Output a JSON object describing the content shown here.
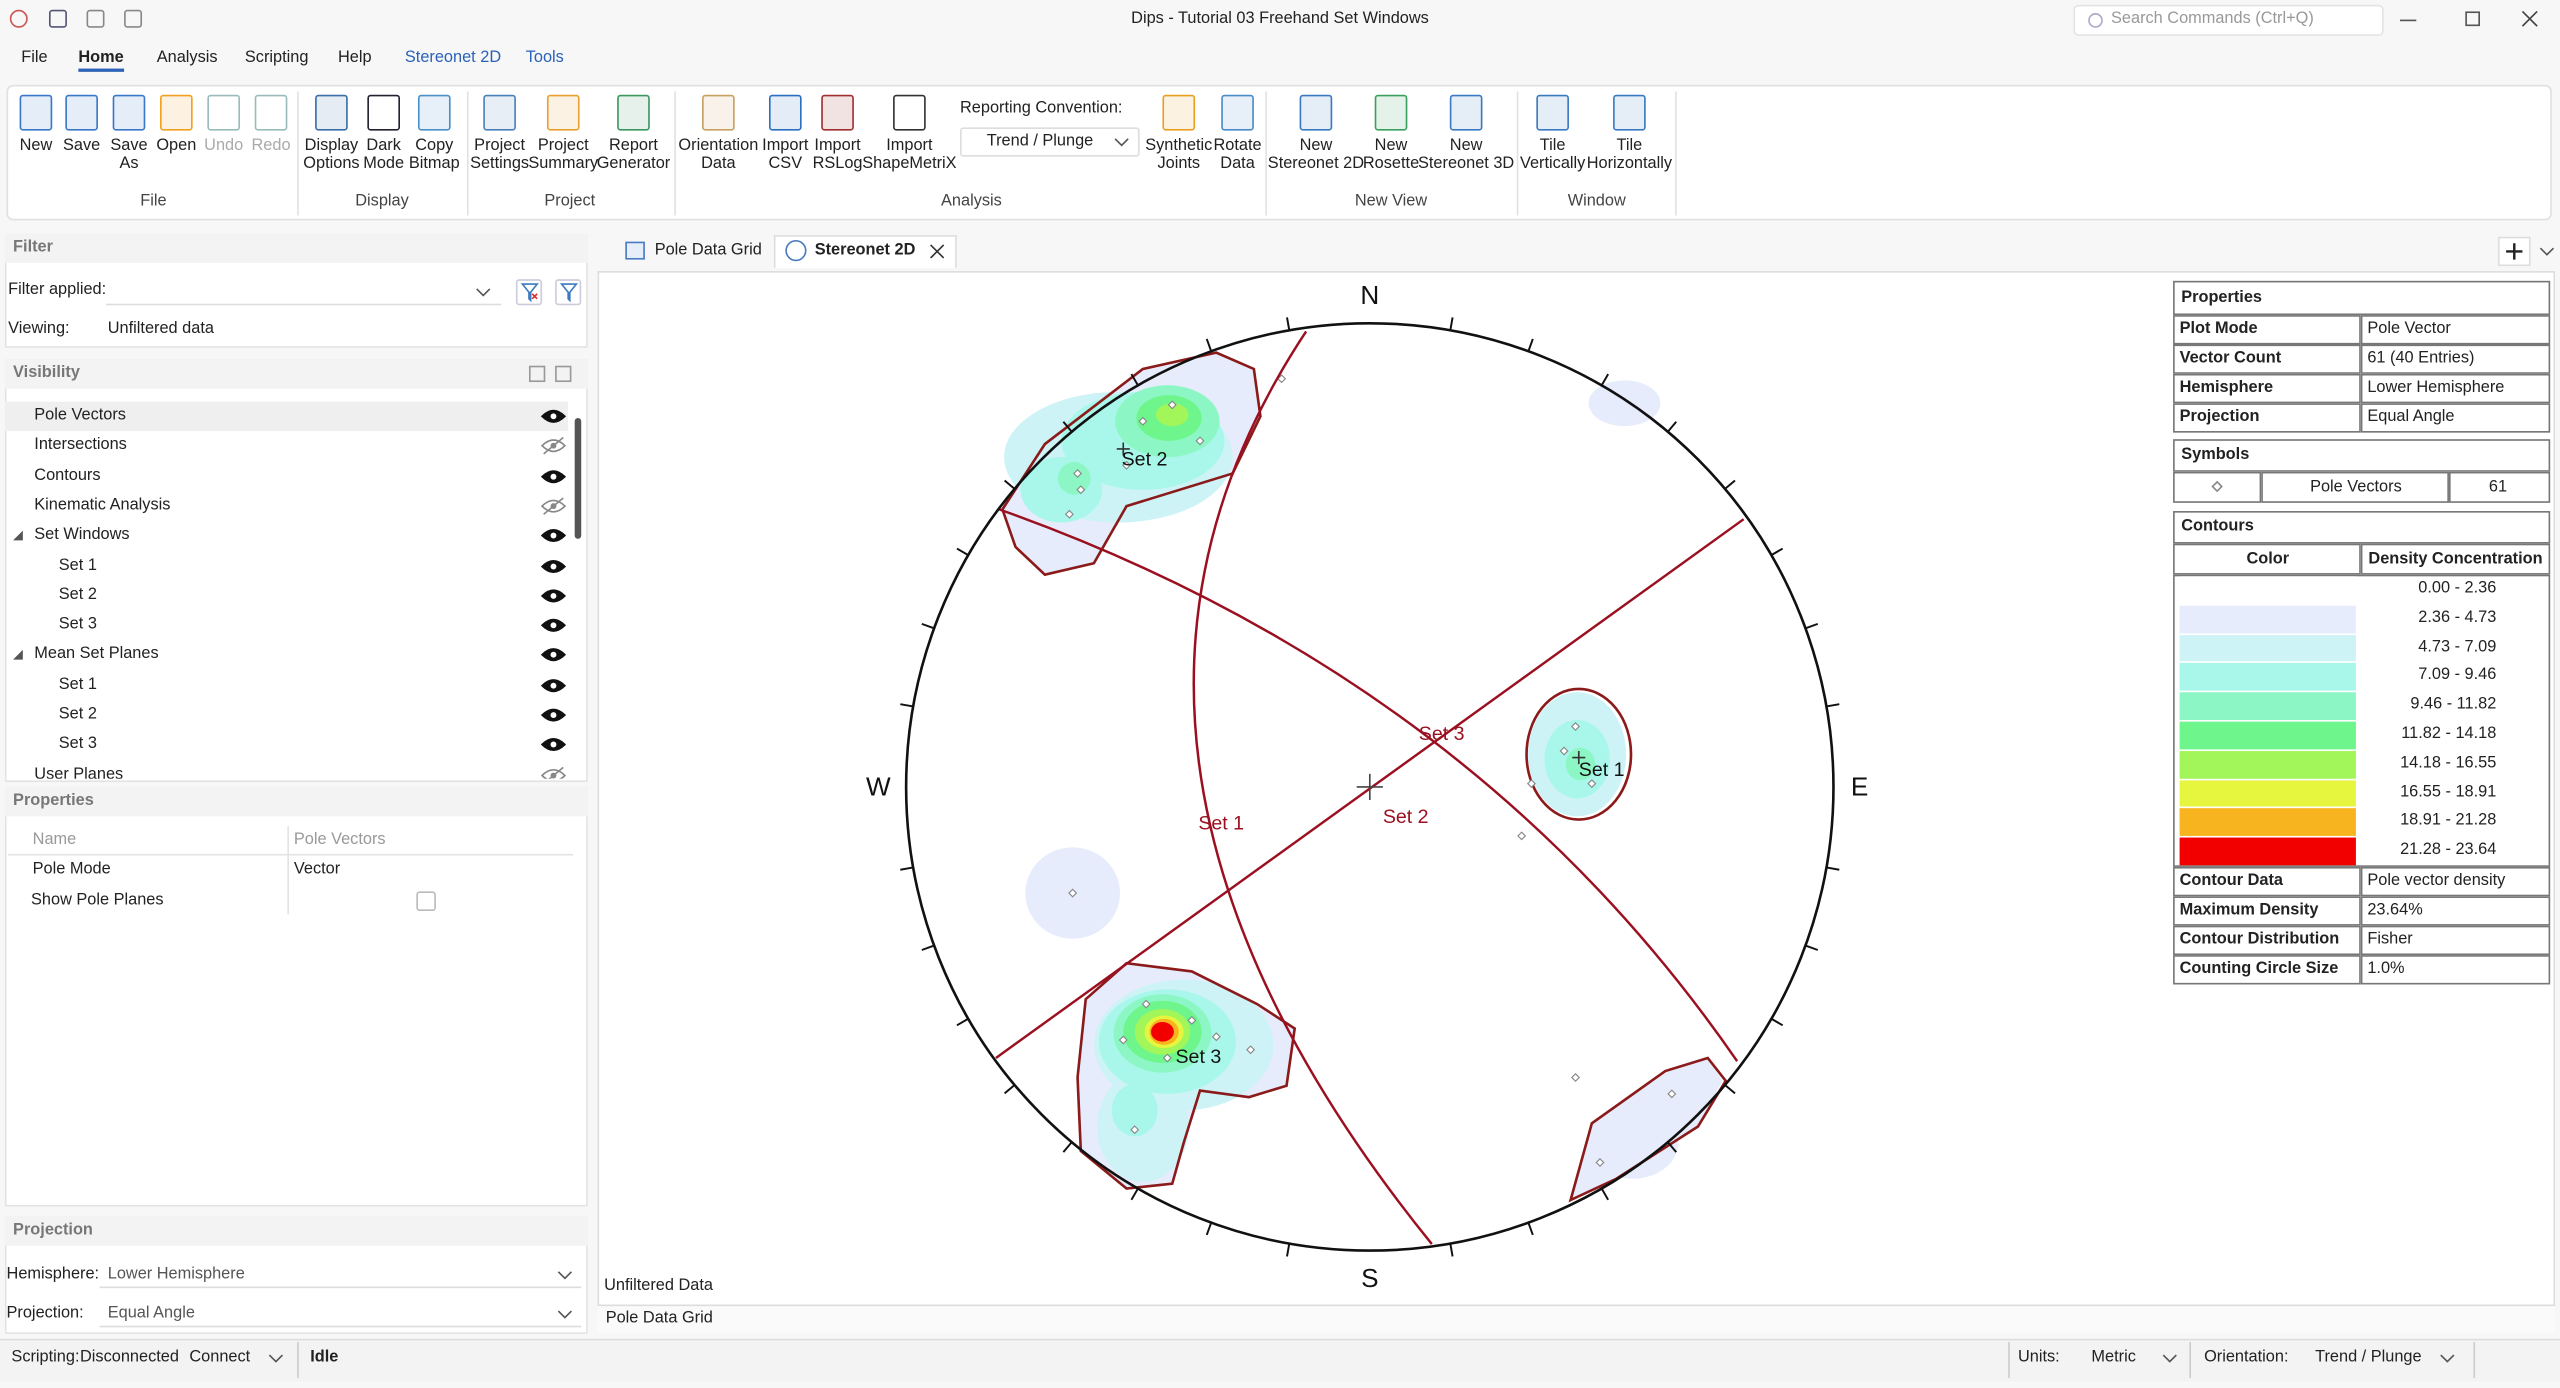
{
  "title_bar": {
    "title": "Dips - Tutorial 03 Freehand Set Windows",
    "search": "Search Commands (Ctrl+Q)"
  },
  "menu": [
    "File",
    "Home",
    "Analysis",
    "Scripting",
    "Help",
    "Stereonet 2D",
    "Tools"
  ],
  "ribbon": {
    "groups": [
      {
        "label": "File",
        "buttons": [
          [
            "New"
          ],
          [
            "Save"
          ],
          [
            "Save",
            "As"
          ],
          [
            "Open"
          ],
          [
            "Undo"
          ],
          [
            "Redo"
          ]
        ]
      },
      {
        "label": "Display",
        "buttons": [
          [
            "Display",
            "Options"
          ],
          [
            "Dark",
            "Mode"
          ],
          [
            "Copy",
            "Bitmap"
          ]
        ]
      },
      {
        "label": "Project",
        "buttons": [
          [
            "Project",
            "Settings"
          ],
          [
            "Project",
            "Summary"
          ],
          [
            "Report",
            "Generator"
          ]
        ]
      },
      {
        "label": "Analysis",
        "buttons": [
          [
            "Orientation",
            "Data"
          ],
          [
            "Import",
            "CSV"
          ],
          [
            "Import",
            "RSLog"
          ],
          [
            "Import",
            "ShapeMetriX"
          ],
          [
            "Synthetic",
            "Joints"
          ],
          [
            "Rotate",
            "Data"
          ]
        ],
        "reporting_label": "Reporting Convention:",
        "reporting_value": "Trend / Plunge"
      },
      {
        "label": "New View",
        "buttons": [
          [
            "New",
            "Stereonet 2D"
          ],
          [
            "New",
            "Rosette"
          ],
          [
            "New",
            "Stereonet 3D"
          ]
        ]
      },
      {
        "label": "Window",
        "buttons": [
          [
            "Tile",
            "Vertically"
          ],
          [
            "Tile",
            "Horizontally"
          ]
        ]
      }
    ]
  },
  "filter": {
    "title": "Filter",
    "applied_label": "Filter applied:",
    "viewing_label": "Viewing:",
    "viewing_value": "Unfiltered data"
  },
  "visibility": {
    "title": "Visibility",
    "items": [
      {
        "label": "Pole Vectors",
        "visible": true
      },
      {
        "label": "Intersections",
        "visible": false
      },
      {
        "label": "Contours",
        "visible": true
      },
      {
        "label": "Kinematic Analysis",
        "visible": false
      },
      {
        "label": "Set Windows",
        "visible": true,
        "children": [
          {
            "label": "Set 1",
            "visible": true
          },
          {
            "label": "Set 2",
            "visible": true
          },
          {
            "label": "Set 3",
            "visible": true
          }
        ]
      },
      {
        "label": "Mean Set Planes",
        "visible": true,
        "children": [
          {
            "label": "Set 1",
            "visible": true
          },
          {
            "label": "Set 2",
            "visible": true
          },
          {
            "label": "Set 3",
            "visible": true
          }
        ]
      },
      {
        "label": "User Planes",
        "visible": false
      }
    ]
  },
  "properties_panel": {
    "title": "Properties",
    "header": [
      "Name",
      "Pole Vectors"
    ],
    "rows": [
      {
        "name": "Pole Mode",
        "value": "Vector"
      },
      {
        "name": "Show Pole Planes",
        "checked": false
      }
    ]
  },
  "projection_panel": {
    "title": "Projection",
    "hemisphere_label": "Hemisphere:",
    "hemisphere": "Lower Hemisphere",
    "projection_label": "Projection:",
    "projection": "Equal Angle"
  },
  "tabs": [
    "Pole Data Grid",
    "Stereonet 2D"
  ],
  "stereonet": {
    "directions": {
      "north": "N",
      "east": "E",
      "south": "S",
      "west": "W"
    },
    "plane_labels": [
      "Set 1",
      "Set 2",
      "Set 3"
    ],
    "window_labels": [
      "Set 1",
      "Set 2",
      "Set 3"
    ],
    "footer": "Unfiltered Data"
  },
  "bottom_tab": "Pole Data Grid",
  "legend": {
    "properties": {
      "title": "Properties",
      "rows": [
        [
          "Plot Mode",
          "Pole Vector"
        ],
        [
          "Vector Count",
          "61 (40 Entries)"
        ],
        [
          "Hemisphere",
          "Lower Hemisphere"
        ],
        [
          "Projection",
          "Equal Angle"
        ]
      ]
    },
    "symbols": {
      "title": "Symbols",
      "label": "Pole Vectors",
      "count": 61
    },
    "contours": {
      "title": "Contours",
      "headers": [
        "Color",
        "Density Concentration"
      ],
      "bins": [
        {
          "color": "#ffffff",
          "range": "0.00 - 2.36"
        },
        {
          "color": "#e6ecfb",
          "range": "2.36 - 4.73"
        },
        {
          "color": "#cdf3f6",
          "range": "4.73 - 7.09"
        },
        {
          "color": "#a8f7ea",
          "range": "7.09 - 9.46"
        },
        {
          "color": "#8cf7c4",
          "range": "9.46 - 11.82"
        },
        {
          "color": "#6ef68c",
          "range": "11.82 - 14.18"
        },
        {
          "color": "#a2f65a",
          "range": "14.18 - 16.55"
        },
        {
          "color": "#e6f63e",
          "range": "16.55 - 18.91"
        },
        {
          "color": "#f8b41e",
          "range": "18.91 - 21.28"
        },
        {
          "color": "#f20000",
          "range": "21.28 - 23.64"
        }
      ],
      "rows": [
        [
          "Contour Data",
          "Pole vector density"
        ],
        [
          "Maximum Density",
          "23.64%"
        ],
        [
          "Contour Distribution",
          "Fisher"
        ],
        [
          "Counting Circle Size",
          "1.0%"
        ]
      ]
    }
  },
  "status_bar": {
    "scripting_label": "Scripting:",
    "scripting_state": "Disconnected",
    "connect": "Connect",
    "state": "Idle",
    "units_label": "Units:",
    "units": "Metric",
    "orientation_label": "Orientation:",
    "orientation": "Trend / Plunge"
  }
}
